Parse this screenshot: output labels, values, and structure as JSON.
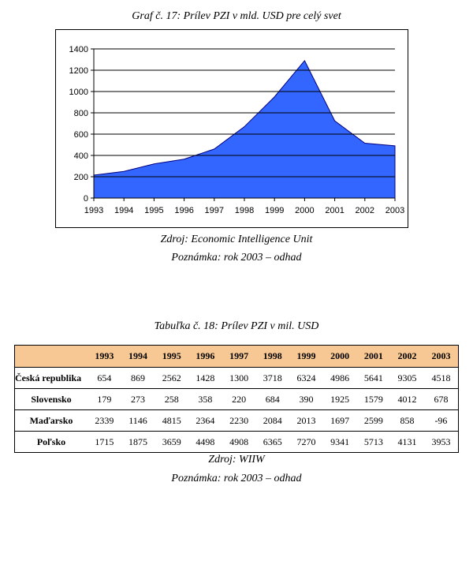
{
  "chart": {
    "caption": "Graf č. 17: Prílev PZI v mld. USD pre celý svet",
    "source": "Zdroj:  Economic Intelligence Unit",
    "note": "Poznámka: rok 2003 – odhad"
  },
  "chart_data": {
    "type": "area",
    "title": "Graf č. 17: Prílev PZI v mld. USD pre celý svet",
    "xlabel": "",
    "ylabel": "",
    "x": [
      "1993",
      "1994",
      "1995",
      "1996",
      "1997",
      "1998",
      "1999",
      "2000",
      "2001",
      "2002",
      "2003"
    ],
    "values": [
      215,
      250,
      320,
      365,
      460,
      670,
      950,
      1290,
      725,
      515,
      490
    ],
    "ylim": [
      0,
      1400
    ],
    "yticks": [
      0,
      200,
      400,
      600,
      800,
      1000,
      1200,
      1400
    ],
    "grid": true,
    "fill_color": "#3366ff",
    "line_color": "#000080"
  },
  "table": {
    "caption": "Tabuľka č. 18: Prílev PZI v mil. USD",
    "source": "Zdroj: WIIW",
    "note": "Poznámka: rok 2003 – odhad",
    "header_color": "#f8c894",
    "headers": [
      "",
      "1993",
      "1994",
      "1995",
      "1996",
      "1997",
      "1998",
      "1999",
      "2000",
      "2001",
      "2002",
      "2003"
    ],
    "rows": [
      {
        "label": "Česká republika",
        "values": [
          "654",
          "869",
          "2562",
          "1428",
          "1300",
          "3718",
          "6324",
          "4986",
          "5641",
          "9305",
          "4518"
        ]
      },
      {
        "label": "Slovensko",
        "values": [
          "179",
          "273",
          "258",
          "358",
          "220",
          "684",
          "390",
          "1925",
          "1579",
          "4012",
          "678"
        ]
      },
      {
        "label": "Maďarsko",
        "values": [
          "2339",
          "1146",
          "4815",
          "2364",
          "2230",
          "2084",
          "2013",
          "1697",
          "2599",
          "858",
          "-96"
        ]
      },
      {
        "label": "Poľsko",
        "values": [
          "1715",
          "1875",
          "3659",
          "4498",
          "4908",
          "6365",
          "7270",
          "9341",
          "5713",
          "4131",
          "3953"
        ]
      }
    ]
  }
}
